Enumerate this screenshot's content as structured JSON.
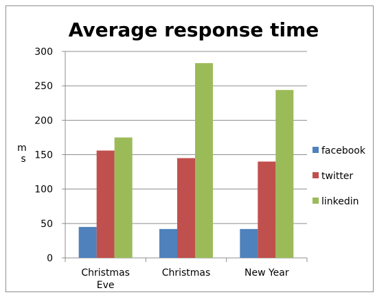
{
  "chart_data": {
    "type": "bar",
    "title": "Average response time",
    "ylabel": "ms",
    "xlabel": "",
    "categories": [
      "Christmas Eve",
      "Christmas",
      "New Year"
    ],
    "category_lines": [
      [
        "Christmas",
        "Eve"
      ],
      [
        "Christmas"
      ],
      [
        "New Year"
      ]
    ],
    "series": [
      {
        "name": "facebook",
        "values": [
          45,
          42,
          42
        ],
        "color": "#4F81BD"
      },
      {
        "name": "twitter",
        "values": [
          156,
          145,
          140
        ],
        "color": "#C0504D"
      },
      {
        "name": "linkedin",
        "values": [
          175,
          283,
          244
        ],
        "color": "#9BBB59"
      }
    ],
    "ylim": [
      0,
      300
    ],
    "yticks": [
      0,
      50,
      100,
      150,
      200,
      250,
      300
    ],
    "grid": true,
    "legend_position": "right"
  }
}
